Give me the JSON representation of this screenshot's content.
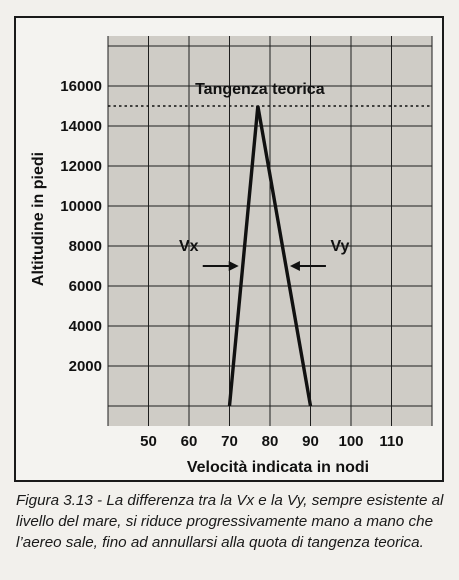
{
  "chart_data": {
    "type": "line",
    "xlabel": "Velocità indicata in nodi",
    "ylabel": "Altitudine in piedi",
    "x_ticks": [
      50,
      60,
      70,
      80,
      90,
      100,
      110
    ],
    "y_ticks": [
      2000,
      4000,
      6000,
      8000,
      10000,
      12000,
      14000,
      16000
    ],
    "xlim": [
      40,
      120
    ],
    "ylim": [
      -1000,
      18500
    ],
    "grid": true,
    "series": [
      {
        "name": "Vx",
        "x": [
          70,
          77
        ],
        "y": [
          0,
          15000
        ]
      },
      {
        "name": "Vy",
        "x": [
          90,
          77
        ],
        "y": [
          0,
          15000
        ]
      }
    ],
    "reference_line": {
      "label": "Tangenza teorica",
      "y": 15000,
      "style": "dotted"
    },
    "annotations": [
      {
        "text": "Vx",
        "arrow_to_series": "Vx",
        "y": 7000
      },
      {
        "text": "Vy",
        "arrow_to_series": "Vy",
        "y": 7000
      }
    ]
  },
  "caption": "Figura 3.13 - La differenza tra la Vx e la Vy, sempre esistente al livello del mare, si riduce progressivamente mano a mano che l’aereo sale, fino ad annullarsi alla quota di tangenza teorica."
}
